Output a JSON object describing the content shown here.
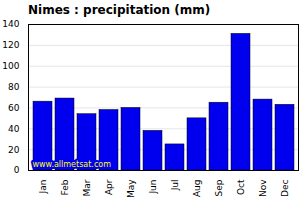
{
  "chart_data": {
    "type": "bar",
    "title": "Nimes : precipitation (mm)",
    "categories": [
      "Jan",
      "Feb",
      "Mar",
      "Apr",
      "May",
      "Jun",
      "Jul",
      "Aug",
      "Sep",
      "Oct",
      "Nov",
      "Dec"
    ],
    "values": [
      66,
      69,
      54,
      58,
      60,
      38,
      25,
      50,
      65,
      131,
      68,
      63
    ],
    "color": "#0000EE",
    "ylim": [
      0,
      140
    ],
    "yticks": [
      0,
      20,
      40,
      60,
      80,
      100,
      120,
      140
    ],
    "grid": true,
    "annotations": [
      "www.allmetsat.com"
    ]
  }
}
